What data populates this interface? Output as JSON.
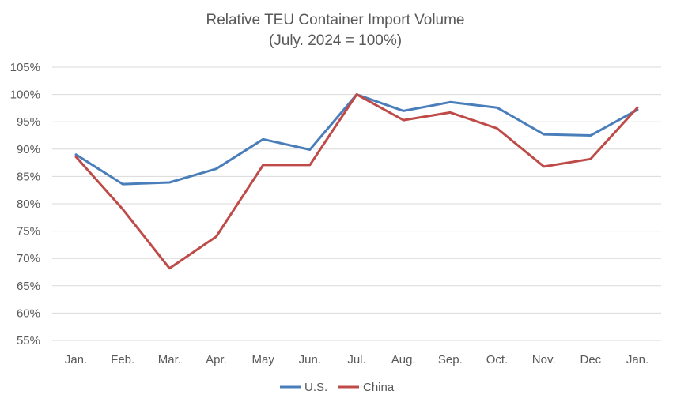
{
  "chart_data": {
    "type": "line",
    "title": "Relative TEU Container Import Volume",
    "subtitle": "(July. 2024 = 100%)",
    "categories": [
      "Jan.",
      "Feb.",
      "Mar.",
      "Apr.",
      "May",
      "Jun.",
      "Jul.",
      "Aug.",
      "Sep.",
      "Oct.",
      "Nov.",
      "Dec",
      "Jan."
    ],
    "series": [
      {
        "name": "U.S.",
        "color": "#4a7ebb",
        "values": [
          89,
          83.6,
          83.9,
          86.4,
          91.8,
          89.9,
          100,
          97,
          98.6,
          97.6,
          92.7,
          92.5,
          97.2
        ]
      },
      {
        "name": "China",
        "color": "#be4b48",
        "values": [
          88.6,
          79,
          68.2,
          74,
          87.1,
          87.1,
          100,
          95.3,
          96.7,
          93.8,
          86.8,
          88.2,
          97.6
        ]
      }
    ],
    "ylim": [
      55,
      105
    ],
    "yticks": [
      "105%",
      "100%",
      "95%",
      "90%",
      "85%",
      "80%",
      "75%",
      "70%",
      "65%",
      "60%",
      "55%"
    ],
    "grid": true,
    "legend": "bottom"
  }
}
